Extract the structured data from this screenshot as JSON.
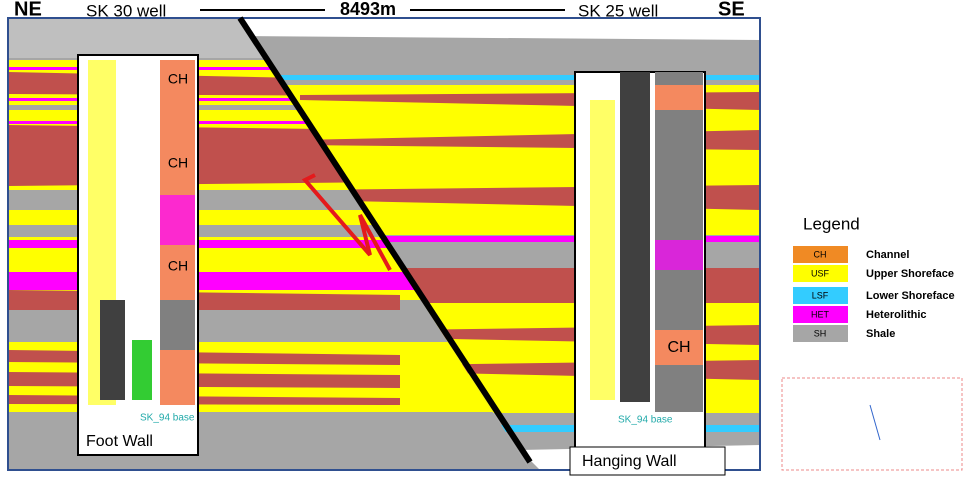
{
  "header": {
    "left_direction": "NE",
    "left_well": "SK 30 well",
    "distance": "8493m",
    "right_well": "SK 25 well",
    "right_direction": "SE"
  },
  "marker": "SK_94 base",
  "panels": {
    "foot_wall": "Foot Wall",
    "hanging_wall": "Hanging Wall"
  },
  "facies_labels": {
    "left": [
      "CH",
      "CH",
      "CH"
    ],
    "right": [
      "CH"
    ]
  },
  "legend": {
    "title": "Legend",
    "items": [
      {
        "code": "CH",
        "name": "Channel",
        "color": "#f08a24"
      },
      {
        "code": "USF",
        "name": "Upper Shoreface",
        "color": "#ffff00"
      },
      {
        "code": "LSF",
        "name": "Lower Shoreface",
        "color": "#33ccff"
      },
      {
        "code": "HET",
        "name": "Heterolithic",
        "color": "#ff00ff"
      },
      {
        "code": "SH",
        "name": "Shale",
        "color": "#a6a6a6"
      }
    ]
  }
}
